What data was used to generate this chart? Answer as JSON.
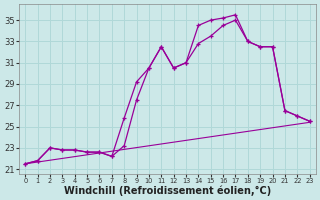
{
  "background_color": "#cce8e8",
  "grid_color": "#b0d8d8",
  "line_color": "#990099",
  "xlabel": "Windchill (Refroidissement éolien,°C)",
  "xlabel_fontsize": 7,
  "yticks": [
    21,
    23,
    25,
    27,
    29,
    31,
    33,
    35
  ],
  "xticks": [
    0,
    1,
    2,
    3,
    4,
    5,
    6,
    7,
    8,
    9,
    10,
    11,
    12,
    13,
    14,
    15,
    16,
    17,
    18,
    19,
    20,
    21,
    22,
    23
  ],
  "xlim": [
    -0.5,
    23.5
  ],
  "ylim": [
    20.5,
    36.5
  ],
  "curve1_x": [
    0,
    1,
    2,
    3,
    4,
    5,
    6,
    7,
    8,
    9,
    10,
    11,
    12,
    13,
    14,
    15,
    16,
    17,
    18,
    19,
    20,
    21,
    22,
    23
  ],
  "curve1_y": [
    21.5,
    21.8,
    23.0,
    22.8,
    22.8,
    22.6,
    22.6,
    22.2,
    25.8,
    29.2,
    30.5,
    32.5,
    30.5,
    31.0,
    34.5,
    35.0,
    35.2,
    35.5,
    33.0,
    32.5,
    32.5,
    26.5,
    26.0,
    25.5
  ],
  "curve2_x": [
    0,
    1,
    2,
    3,
    4,
    5,
    6,
    7,
    8,
    9,
    10,
    11,
    12,
    13,
    14,
    15,
    16,
    17,
    18,
    19,
    20,
    21,
    22,
    23
  ],
  "curve2_y": [
    21.5,
    21.8,
    23.0,
    22.8,
    22.8,
    22.6,
    22.6,
    22.2,
    23.2,
    27.5,
    30.5,
    32.5,
    30.5,
    31.0,
    32.8,
    33.5,
    34.5,
    35.0,
    33.0,
    32.5,
    32.5,
    26.5,
    26.0,
    25.5
  ],
  "curve3_x": [
    0,
    23
  ],
  "curve3_y": [
    21.5,
    25.4
  ]
}
